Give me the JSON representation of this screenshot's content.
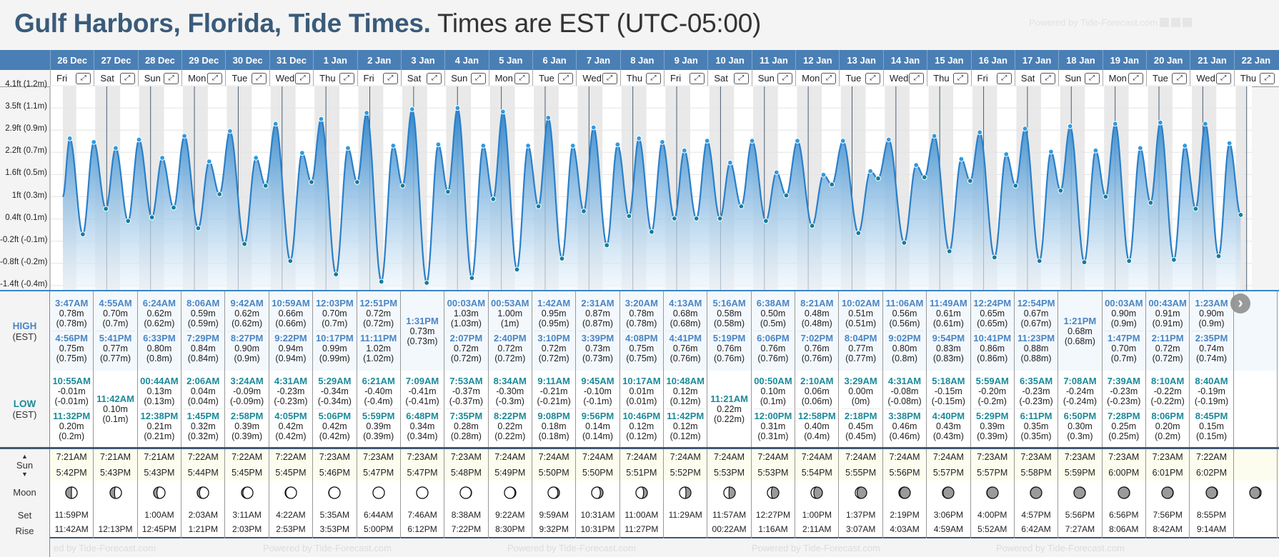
{
  "title": {
    "main": "Gulf Harbors, Florida, Tide Times.",
    "sub": "Times are EST (UTC-05:00)"
  },
  "watermark": "Powered by Tide-Forecast.com",
  "labels": {
    "high": "HIGH",
    "low": "LOW",
    "tz": "(EST)",
    "sun": "Sun",
    "moon": "Moon",
    "set": "Set",
    "rise": "Rise",
    "next": "›"
  },
  "colors": {
    "header": "#4a7fb5",
    "curve": "#2a7fc8",
    "high_dot": "#2e9be0",
    "low_dot": "#137f9a",
    "night": "#e9e9e9"
  },
  "y_axis_labels": [
    "4.1ft (1.2m)",
    "3.5ft (1.1m)",
    "2.9ft (0.9m)",
    "2.2ft (0.7m)",
    "1.6ft (0.5m)",
    "1ft (0.3m)",
    "0.4ft (0.1m)",
    "-0.2ft (-0.1m)",
    "-0.8ft (-0.2m)",
    "-1.4ft (-0.4m)"
  ],
  "days": [
    {
      "date": "26 Dec",
      "dow": "Fri",
      "high": [
        [
          "3:47AM",
          "0.78m",
          "(0.78m)"
        ],
        [
          "4:56PM",
          "0.75m",
          "(0.75m)"
        ]
      ],
      "low": [
        [
          "10:55AM",
          "-0.01m",
          "(-0.01m)"
        ],
        [
          "11:32PM",
          "0.20m",
          "(0.2m)"
        ]
      ],
      "sunrise": "7:21AM",
      "sunset": "5:42PM",
      "moonset": "11:59PM",
      "moonrise": "11:42AM",
      "phase": 0.25
    },
    {
      "date": "27 Dec",
      "dow": "Sat",
      "high": [
        [
          "4:55AM",
          "0.70m",
          "(0.7m)"
        ],
        [
          "5:41PM",
          "0.77m",
          "(0.77m)"
        ]
      ],
      "low": [
        [
          "11:42AM",
          "0.10m",
          "(0.1m)"
        ]
      ],
      "sunrise": "7:21AM",
      "sunset": "5:43PM",
      "moonset": "",
      "moonrise": "12:13PM",
      "phase": 0.284
    },
    {
      "date": "28 Dec",
      "dow": "Sun",
      "high": [
        [
          "6:24AM",
          "0.62m",
          "(0.62m)"
        ],
        [
          "6:33PM",
          "0.80m",
          "(0.8m)"
        ]
      ],
      "low": [
        [
          "00:44AM",
          "0.13m",
          "(0.13m)"
        ],
        [
          "12:38PM",
          "0.21m",
          "(0.21m)"
        ]
      ],
      "sunrise": "7:21AM",
      "sunset": "5:43PM",
      "moonset": "1:00AM",
      "moonrise": "12:45PM",
      "phase": 0.318
    },
    {
      "date": "29 Dec",
      "dow": "Mon",
      "high": [
        [
          "8:06AM",
          "0.59m",
          "(0.59m)"
        ],
        [
          "7:29PM",
          "0.84m",
          "(0.84m)"
        ]
      ],
      "low": [
        [
          "2:06AM",
          "0.04m",
          "(0.04m)"
        ],
        [
          "1:45PM",
          "0.32m",
          "(0.32m)"
        ]
      ],
      "sunrise": "7:22AM",
      "sunset": "5:44PM",
      "moonset": "2:03AM",
      "moonrise": "1:21PM",
      "phase": 0.352
    },
    {
      "date": "30 Dec",
      "dow": "Tue",
      "high": [
        [
          "9:42AM",
          "0.62m",
          "(0.62m)"
        ],
        [
          "8:27PM",
          "0.90m",
          "(0.9m)"
        ]
      ],
      "low": [
        [
          "3:24AM",
          "-0.09m",
          "(-0.09m)"
        ],
        [
          "2:58PM",
          "0.39m",
          "(0.39m)"
        ]
      ],
      "sunrise": "7:22AM",
      "sunset": "5:45PM",
      "moonset": "3:11AM",
      "moonrise": "2:03PM",
      "phase": 0.386
    },
    {
      "date": "31 Dec",
      "dow": "Wed",
      "high": [
        [
          "10:59AM",
          "0.66m",
          "(0.66m)"
        ],
        [
          "9:22PM",
          "0.94m",
          "(0.94m)"
        ]
      ],
      "low": [
        [
          "4:31AM",
          "-0.23m",
          "(-0.23m)"
        ],
        [
          "4:05PM",
          "0.42m",
          "(0.42m)"
        ]
      ],
      "sunrise": "7:22AM",
      "sunset": "5:45PM",
      "moonset": "4:22AM",
      "moonrise": "2:53PM",
      "phase": 0.42
    },
    {
      "date": "1 Jan",
      "dow": "Thu",
      "high": [
        [
          "12:03PM",
          "0.70m",
          "(0.7m)"
        ],
        [
          "10:17PM",
          "0.99m",
          "(0.99m)"
        ]
      ],
      "low": [
        [
          "5:29AM",
          "-0.34m",
          "(-0.34m)"
        ],
        [
          "5:06PM",
          "0.42m",
          "(0.42m)"
        ]
      ],
      "sunrise": "7:23AM",
      "sunset": "5:46PM",
      "moonset": "5:35AM",
      "moonrise": "3:53PM",
      "phase": 0.454
    },
    {
      "date": "2 Jan",
      "dow": "Fri",
      "high": [
        [
          "12:51PM",
          "0.72m",
          "(0.72m)"
        ],
        [
          "11:11PM",
          "1.02m",
          "(1.02m)"
        ]
      ],
      "low": [
        [
          "6:21AM",
          "-0.40m",
          "(-0.4m)"
        ],
        [
          "5:59PM",
          "0.39m",
          "(0.39m)"
        ]
      ],
      "sunrise": "7:23AM",
      "sunset": "5:47PM",
      "moonset": "6:44AM",
      "moonrise": "5:00PM",
      "phase": 0.488
    },
    {
      "date": "3 Jan",
      "dow": "Sat",
      "high": [
        [
          "1:31PM",
          "0.73m",
          "(0.73m)"
        ]
      ],
      "low": [
        [
          "7:09AM",
          "-0.41m",
          "(-0.41m)"
        ],
        [
          "6:48PM",
          "0.34m",
          "(0.34m)"
        ]
      ],
      "sunrise": "7:23AM",
      "sunset": "5:47PM",
      "moonset": "7:46AM",
      "moonrise": "6:12PM",
      "phase": 0.52
    },
    {
      "date": "4 Jan",
      "dow": "Sun",
      "high": [
        [
          "00:03AM",
          "1.03m",
          "(1.03m)"
        ],
        [
          "2:07PM",
          "0.72m",
          "(0.72m)"
        ]
      ],
      "low": [
        [
          "7:53AM",
          "-0.37m",
          "(-0.37m)"
        ],
        [
          "7:35PM",
          "0.28m",
          "(0.28m)"
        ]
      ],
      "sunrise": "7:23AM",
      "sunset": "5:48PM",
      "moonset": "8:38AM",
      "moonrise": "7:22PM",
      "phase": 0.555
    },
    {
      "date": "5 Jan",
      "dow": "Mon",
      "high": [
        [
          "00:53AM",
          "1.00m",
          "(1m)"
        ],
        [
          "2:40PM",
          "0.72m",
          "(0.72m)"
        ]
      ],
      "low": [
        [
          "8:34AM",
          "-0.30m",
          "(-0.3m)"
        ],
        [
          "8:22PM",
          "0.22m",
          "(0.22m)"
        ]
      ],
      "sunrise": "7:24AM",
      "sunset": "5:49PM",
      "moonset": "9:22AM",
      "moonrise": "8:30PM",
      "phase": 0.59
    },
    {
      "date": "6 Jan",
      "dow": "Tue",
      "high": [
        [
          "1:42AM",
          "0.95m",
          "(0.95m)"
        ],
        [
          "3:10PM",
          "0.72m",
          "(0.72m)"
        ]
      ],
      "low": [
        [
          "9:11AM",
          "-0.21m",
          "(-0.21m)"
        ],
        [
          "9:08PM",
          "0.18m",
          "(0.18m)"
        ]
      ],
      "sunrise": "7:24AM",
      "sunset": "5:50PM",
      "moonset": "9:59AM",
      "moonrise": "9:32PM",
      "phase": 0.624
    },
    {
      "date": "7 Jan",
      "dow": "Wed",
      "high": [
        [
          "2:31AM",
          "0.87m",
          "(0.87m)"
        ],
        [
          "3:39PM",
          "0.73m",
          "(0.73m)"
        ]
      ],
      "low": [
        [
          "9:45AM",
          "-0.10m",
          "(-0.1m)"
        ],
        [
          "9:56PM",
          "0.14m",
          "(0.14m)"
        ]
      ],
      "sunrise": "7:24AM",
      "sunset": "5:50PM",
      "moonset": "10:31AM",
      "moonrise": "10:31PM",
      "phase": 0.66
    },
    {
      "date": "8 Jan",
      "dow": "Thu",
      "high": [
        [
          "3:20AM",
          "0.78m",
          "(0.78m)"
        ],
        [
          "4:08PM",
          "0.75m",
          "(0.75m)"
        ]
      ],
      "low": [
        [
          "10:17AM",
          "0.01m",
          "(0.01m)"
        ],
        [
          "10:46PM",
          "0.12m",
          "(0.12m)"
        ]
      ],
      "sunrise": "7:24AM",
      "sunset": "5:51PM",
      "moonset": "11:00AM",
      "moonrise": "11:27PM",
      "phase": 0.695
    },
    {
      "date": "9 Jan",
      "dow": "Fri",
      "high": [
        [
          "4:13AM",
          "0.68m",
          "(0.68m)"
        ],
        [
          "4:41PM",
          "0.76m",
          "(0.76m)"
        ]
      ],
      "low": [
        [
          "10:48AM",
          "0.12m",
          "(0.12m)"
        ],
        [
          "11:42PM",
          "0.12m",
          "(0.12m)"
        ]
      ],
      "sunrise": "7:24AM",
      "sunset": "5:52PM",
      "moonset": "11:29AM",
      "moonrise": "",
      "phase": 0.73
    },
    {
      "date": "10 Jan",
      "dow": "Sat",
      "high": [
        [
          "5:16AM",
          "0.58m",
          "(0.58m)"
        ],
        [
          "5:19PM",
          "0.76m",
          "(0.76m)"
        ]
      ],
      "low": [
        [
          "11:21AM",
          "0.22m",
          "(0.22m)"
        ]
      ],
      "sunrise": "7:24AM",
      "sunset": "5:53PM",
      "moonset": "11:57AM",
      "moonrise": "00:22AM",
      "phase": 0.765
    },
    {
      "date": "11 Jan",
      "dow": "Sun",
      "high": [
        [
          "6:38AM",
          "0.50m",
          "(0.5m)"
        ],
        [
          "6:06PM",
          "0.76m",
          "(0.76m)"
        ]
      ],
      "low": [
        [
          "00:50AM",
          "0.10m",
          "(0.1m)"
        ],
        [
          "12:00PM",
          "0.31m",
          "(0.31m)"
        ]
      ],
      "sunrise": "7:24AM",
      "sunset": "5:53PM",
      "moonset": "12:27PM",
      "moonrise": "1:16AM",
      "phase": 0.8
    },
    {
      "date": "12 Jan",
      "dow": "Mon",
      "high": [
        [
          "8:21AM",
          "0.48m",
          "(0.48m)"
        ],
        [
          "7:02PM",
          "0.76m",
          "(0.76m)"
        ]
      ],
      "low": [
        [
          "2:10AM",
          "0.06m",
          "(0.06m)"
        ],
        [
          "12:58PM",
          "0.40m",
          "(0.4m)"
        ]
      ],
      "sunrise": "7:24AM",
      "sunset": "5:54PM",
      "moonset": "1:00PM",
      "moonrise": "2:11AM",
      "phase": 0.835
    },
    {
      "date": "13 Jan",
      "dow": "Tue",
      "high": [
        [
          "10:02AM",
          "0.51m",
          "(0.51m)"
        ],
        [
          "8:04PM",
          "0.77m",
          "(0.77m)"
        ]
      ],
      "low": [
        [
          "3:29AM",
          "0.00m",
          "(0m)"
        ],
        [
          "2:18PM",
          "0.45m",
          "(0.45m)"
        ]
      ],
      "sunrise": "7:24AM",
      "sunset": "5:55PM",
      "moonset": "1:37PM",
      "moonrise": "3:07AM",
      "phase": 0.87
    },
    {
      "date": "14 Jan",
      "dow": "Wed",
      "high": [
        [
          "11:06AM",
          "0.56m",
          "(0.56m)"
        ],
        [
          "9:02PM",
          "0.80m",
          "(0.8m)"
        ]
      ],
      "low": [
        [
          "4:31AM",
          "-0.08m",
          "(-0.08m)"
        ],
        [
          "3:38PM",
          "0.46m",
          "(0.46m)"
        ]
      ],
      "sunrise": "7:24AM",
      "sunset": "5:56PM",
      "moonset": "2:19PM",
      "moonrise": "4:03AM",
      "phase": 0.905
    },
    {
      "date": "15 Jan",
      "dow": "Thu",
      "high": [
        [
          "11:49AM",
          "0.61m",
          "(0.61m)"
        ],
        [
          "9:54PM",
          "0.83m",
          "(0.83m)"
        ]
      ],
      "low": [
        [
          "5:18AM",
          "-0.15m",
          "(-0.15m)"
        ],
        [
          "4:40PM",
          "0.43m",
          "(0.43m)"
        ]
      ],
      "sunrise": "7:24AM",
      "sunset": "5:57PM",
      "moonset": "3:06PM",
      "moonrise": "4:59AM",
      "phase": 0.93
    },
    {
      "date": "16 Jan",
      "dow": "Fri",
      "high": [
        [
          "12:24PM",
          "0.65m",
          "(0.65m)"
        ],
        [
          "10:41PM",
          "0.86m",
          "(0.86m)"
        ]
      ],
      "low": [
        [
          "5:59AM",
          "-0.20m",
          "(-0.2m)"
        ],
        [
          "5:29PM",
          "0.39m",
          "(0.39m)"
        ]
      ],
      "sunrise": "7:23AM",
      "sunset": "5:57PM",
      "moonset": "4:00PM",
      "moonrise": "5:52AM",
      "phase": 0.955
    },
    {
      "date": "17 Jan",
      "dow": "Sat",
      "high": [
        [
          "12:54PM",
          "0.67m",
          "(0.67m)"
        ],
        [
          "11:23PM",
          "0.88m",
          "(0.88m)"
        ]
      ],
      "low": [
        [
          "6:35AM",
          "-0.23m",
          "(-0.23m)"
        ],
        [
          "6:11PM",
          "0.35m",
          "(0.35m)"
        ]
      ],
      "sunrise": "7:23AM",
      "sunset": "5:58PM",
      "moonset": "4:57PM",
      "moonrise": "6:42AM",
      "phase": 0.98
    },
    {
      "date": "18 Jan",
      "dow": "Sun",
      "high": [
        [
          "1:21PM",
          "0.68m",
          "(0.68m)"
        ]
      ],
      "low": [
        [
          "7:08AM",
          "-0.24m",
          "(-0.24m)"
        ],
        [
          "6:50PM",
          "0.30m",
          "(0.3m)"
        ]
      ],
      "sunrise": "7:23AM",
      "sunset": "5:59PM",
      "moonset": "5:56PM",
      "moonrise": "7:27AM",
      "phase": 0.0
    },
    {
      "date": "19 Jan",
      "dow": "Mon",
      "high": [
        [
          "00:03AM",
          "0.90m",
          "(0.9m)"
        ],
        [
          "1:47PM",
          "0.70m",
          "(0.7m)"
        ]
      ],
      "low": [
        [
          "7:39AM",
          "-0.23m",
          "(-0.23m)"
        ],
        [
          "7:28PM",
          "0.25m",
          "(0.25m)"
        ]
      ],
      "sunrise": "7:23AM",
      "sunset": "6:00PM",
      "moonset": "6:56PM",
      "moonrise": "8:06AM",
      "phase": 0.02
    },
    {
      "date": "20 Jan",
      "dow": "Tue",
      "high": [
        [
          "00:43AM",
          "0.91m",
          "(0.91m)"
        ],
        [
          "2:11PM",
          "0.72m",
          "(0.72m)"
        ]
      ],
      "low": [
        [
          "8:10AM",
          "-0.22m",
          "(-0.22m)"
        ],
        [
          "8:06PM",
          "0.20m",
          "(0.2m)"
        ]
      ],
      "sunrise": "7:23AM",
      "sunset": "6:01PM",
      "moonset": "7:56PM",
      "moonrise": "8:42AM",
      "phase": 0.04
    },
    {
      "date": "21 Jan",
      "dow": "Wed",
      "high": [
        [
          "1:23AM",
          "0.90m",
          "(0.9m)"
        ],
        [
          "2:35PM",
          "0.74m",
          "(0.74m)"
        ]
      ],
      "low": [
        [
          "8:40AM",
          "-0.19m",
          "(-0.19m)"
        ],
        [
          "8:45PM",
          "0.15m",
          "(0.15m)"
        ]
      ],
      "sunrise": "7:22AM",
      "sunset": "6:02PM",
      "moonset": "8:55PM",
      "moonrise": "9:14AM",
      "phase": 0.07
    },
    {
      "date": "22 Jan",
      "dow": "Thu",
      "high": [],
      "low": [],
      "sunrise": "",
      "sunset": "",
      "moonset": "",
      "moonrise": "",
      "phase": 0.1
    }
  ]
}
